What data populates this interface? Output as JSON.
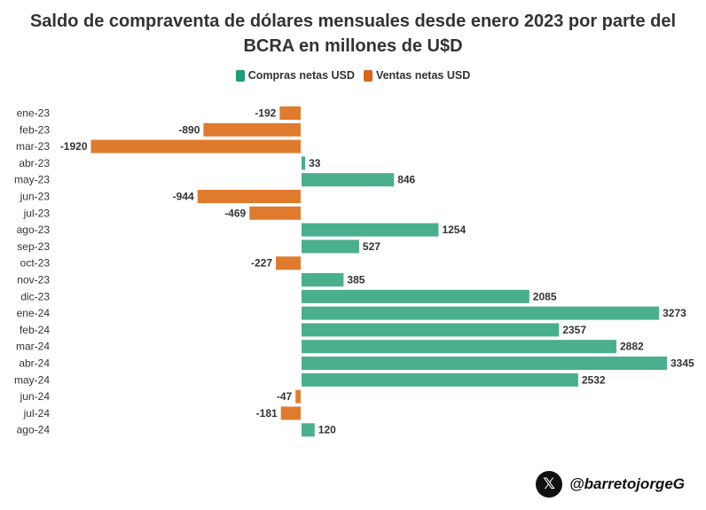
{
  "colors": {
    "positive": "#4aaf8c",
    "negative": "#e07b2e",
    "text": "#333333"
  },
  "legend": [
    {
      "label": "Compras netas USD",
      "color": "#1a9e78"
    },
    {
      "label": "Ventas netas USD",
      "color": "#d9661c"
    }
  ],
  "footer": {
    "icon": "x-logo-icon",
    "glyph": "𝕏",
    "handle": "@barretojorgeG"
  },
  "chart_data": {
    "type": "bar",
    "orientation": "horizontal",
    "title_line1": "Saldo de compraventa de dólares mensuales desde enero 2023 por parte del",
    "title_line2": "BCRA en millones de U$D",
    "categories": [
      "ene-23",
      "feb-23",
      "mar-23",
      "abr-23",
      "may-23",
      "jun-23",
      "jul-23",
      "ago-23",
      "sep-23",
      "oct-23",
      "nov-23",
      "dic-23",
      "ene-24",
      "feb-24",
      "mar-24",
      "abr-24",
      "may-24",
      "jun-24",
      "jul-24",
      "ago-24"
    ],
    "values": [
      -192,
      -890,
      -1920,
      33,
      846,
      -944,
      -469,
      1254,
      527,
      -227,
      385,
      2085,
      3273,
      2357,
      2882,
      3345,
      2532,
      -47,
      -181,
      120
    ],
    "value_labels": [
      "-192",
      "-890",
      "-1920",
      "33",
      "846",
      "-944",
      "-469",
      "1254",
      "527",
      "-227",
      "385",
      "2085",
      "3273",
      "2357",
      "2882",
      "3345",
      "2532",
      "-47",
      "-181",
      "120"
    ],
    "xlim": [
      -1920,
      3345
    ],
    "grid": false,
    "legend_position": "top"
  }
}
